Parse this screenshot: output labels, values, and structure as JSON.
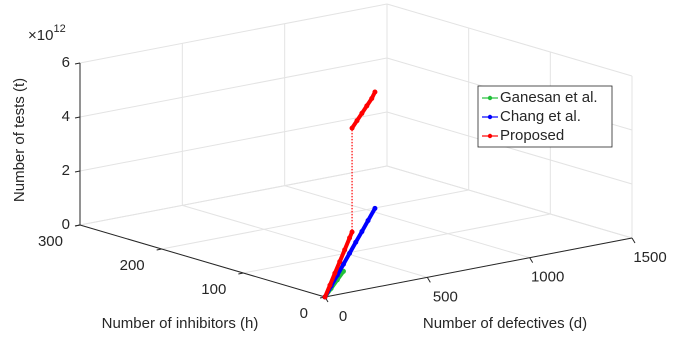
{
  "chart_data": {
    "type": "line3d",
    "xlabel": "Number of defectives (d)",
    "ylabel": "Number of inhibitors (h)",
    "zlabel": "Number of tests (t)",
    "zexponent": {
      "base": "×10",
      "power": "12"
    },
    "xlim": [
      0,
      1500
    ],
    "xticks": [
      0,
      500,
      1000,
      1500
    ],
    "ylim": [
      0,
      300
    ],
    "yticks": [
      0,
      100,
      200,
      300
    ],
    "zlim": [
      0,
      6000000000000
    ],
    "zticks": [
      {
        "value": 0,
        "label": "0"
      },
      {
        "value": 2000000000000,
        "label": "2"
      },
      {
        "value": 4000000000000,
        "label": "4"
      },
      {
        "value": 6000000000000,
        "label": "6"
      }
    ],
    "grid": true,
    "legend": "upper right",
    "series": [
      {
        "name": "Ganesan et al.",
        "color": "#22c03a",
        "x": [
          0,
          50,
          100,
          150
        ],
        "y": [
          0,
          5,
          10,
          15
        ],
        "values": [
          0,
          200000000000,
          400000000000,
          600000000000
        ]
      },
      {
        "name": "Chang et al.",
        "color": "#0000ff",
        "x": [
          0,
          50,
          100,
          150,
          200,
          250,
          300,
          350,
          406
        ],
        "y": [
          0,
          5,
          10,
          15,
          20,
          25,
          30,
          35,
          40.6
        ],
        "values": [
          0,
          290000000000,
          570000000000,
          860000000000,
          1150000000000,
          1440000000000,
          1720000000000,
          2010000000000,
          2330000000000
        ]
      },
      {
        "name": "Proposed",
        "color": "#ff0000",
        "x": [
          0,
          40,
          80,
          120,
          160,
          200,
          220,
          220,
          260,
          300,
          340,
          380,
          406
        ],
        "y": [
          0,
          4,
          8,
          12,
          16,
          20,
          22,
          22,
          26,
          30,
          34,
          38,
          40.6
        ],
        "values": [
          0,
          340000000000,
          690000000000,
          1030000000000,
          1370000000000,
          1720000000000,
          1890000000000,
          5740000000000,
          5920000000000,
          6100000000000,
          6280000000000,
          6460000000000,
          6640000000000
        ]
      }
    ]
  }
}
